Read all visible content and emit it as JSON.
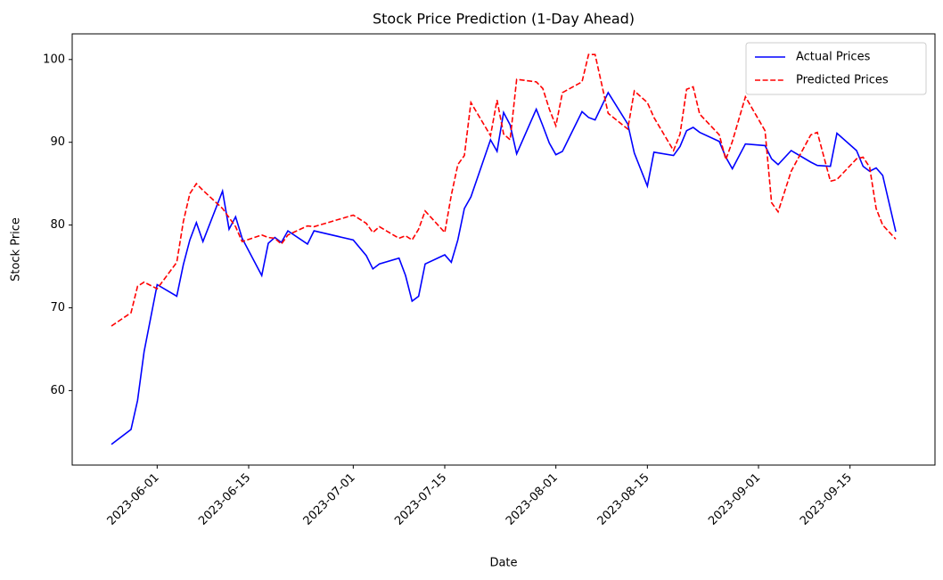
{
  "chart_data": {
    "type": "line",
    "title": "Stock Price Prediction (1-Day Ahead)",
    "x_label": "Date",
    "y_label": "Stock Price",
    "x": [
      "2023-05-25",
      "2023-05-28",
      "2023-05-29",
      "2023-05-30",
      "2023-06-01",
      "2023-06-04",
      "2023-06-05",
      "2023-06-06",
      "2023-06-07",
      "2023-06-08",
      "2023-06-11",
      "2023-06-12",
      "2023-06-13",
      "2023-06-14",
      "2023-06-17",
      "2023-06-18",
      "2023-06-19",
      "2023-06-20",
      "2023-06-21",
      "2023-06-24",
      "2023-06-25",
      "2023-07-01",
      "2023-07-03",
      "2023-07-04",
      "2023-07-05",
      "2023-07-08",
      "2023-07-09",
      "2023-07-10",
      "2023-07-11",
      "2023-07-12",
      "2023-07-15",
      "2023-07-16",
      "2023-07-17",
      "2023-07-18",
      "2023-07-19",
      "2023-07-22",
      "2023-07-23",
      "2023-07-24",
      "2023-07-25",
      "2023-07-26",
      "2023-07-29",
      "2023-07-30",
      "2023-07-31",
      "2023-08-01",
      "2023-08-02",
      "2023-08-05",
      "2023-08-06",
      "2023-08-07",
      "2023-08-09",
      "2023-08-12",
      "2023-08-13",
      "2023-08-15",
      "2023-08-16",
      "2023-08-19",
      "2023-08-20",
      "2023-08-21",
      "2023-08-22",
      "2023-08-23",
      "2023-08-26",
      "2023-08-27",
      "2023-08-28",
      "2023-08-30",
      "2023-09-02",
      "2023-09-03",
      "2023-09-04",
      "2023-09-06",
      "2023-09-09",
      "2023-09-10",
      "2023-09-12",
      "2023-09-13",
      "2023-09-16",
      "2023-09-17",
      "2023-09-18",
      "2023-09-19",
      "2023-09-20",
      "2023-09-22"
    ],
    "series": [
      {
        "name": "Actual Prices",
        "color": "#0000ff",
        "dash": "solid",
        "values": [
          53.5,
          55.3,
          58.8,
          64.7,
          72.8,
          71.4,
          75.2,
          78.2,
          80.3,
          78.0,
          84.1,
          79.5,
          81.0,
          78.4,
          73.9,
          77.8,
          78.5,
          77.9,
          79.3,
          77.7,
          79.3,
          78.2,
          76.3,
          74.7,
          75.3,
          76.0,
          73.9,
          70.8,
          71.4,
          75.3,
          76.4,
          75.5,
          78.2,
          82.0,
          83.4,
          90.3,
          88.9,
          93.6,
          92.1,
          88.6,
          94.0,
          92.0,
          89.9,
          88.5,
          88.9,
          93.7,
          93.0,
          92.7,
          96.0,
          92.2,
          88.7,
          84.7,
          88.8,
          88.4,
          89.5,
          91.4,
          91.8,
          91.2,
          90.1,
          88.2,
          86.8,
          89.8,
          89.6,
          88.0,
          87.3,
          89.0,
          87.6,
          87.2,
          87.1,
          91.1,
          89.0,
          87.1,
          86.5,
          86.9,
          86.0,
          79.2
        ]
      },
      {
        "name": "Predicted Prices",
        "color": "#ff0000",
        "dash": "dashed",
        "values": [
          67.8,
          69.4,
          72.6,
          73.1,
          72.3,
          75.5,
          80.4,
          83.8,
          85.0,
          84.2,
          82.0,
          80.9,
          79.8,
          78.0,
          78.8,
          78.5,
          78.4,
          77.7,
          78.8,
          79.9,
          79.8,
          81.2,
          80.2,
          79.1,
          79.8,
          78.4,
          78.7,
          78.2,
          79.5,
          81.7,
          79.1,
          83.6,
          87.3,
          88.4,
          94.8,
          90.8,
          95.1,
          91.0,
          90.3,
          97.6,
          97.3,
          96.5,
          94.0,
          92.0,
          96.0,
          97.3,
          100.6,
          100.6,
          93.5,
          91.6,
          96.2,
          94.8,
          93.0,
          89.0,
          91.0,
          96.4,
          96.7,
          93.4,
          90.9,
          87.9,
          90.1,
          95.5,
          91.4,
          82.7,
          81.6,
          86.5,
          90.9,
          91.2,
          85.3,
          85.5,
          88.0,
          88.2,
          87.0,
          82.0,
          80.0,
          78.3
        ]
      }
    ],
    "xlim": [
      "2023-05-19",
      "2023-09-28"
    ],
    "xticks": [
      "2023-06-01",
      "2023-06-15",
      "2023-07-01",
      "2023-07-15",
      "2023-08-01",
      "2023-08-15",
      "2023-09-01",
      "2023-09-15"
    ],
    "ylim": [
      51.0,
      103.1
    ],
    "yticks": [
      60,
      70,
      80,
      90,
      100
    ],
    "grid": false,
    "legend": "upper right"
  }
}
